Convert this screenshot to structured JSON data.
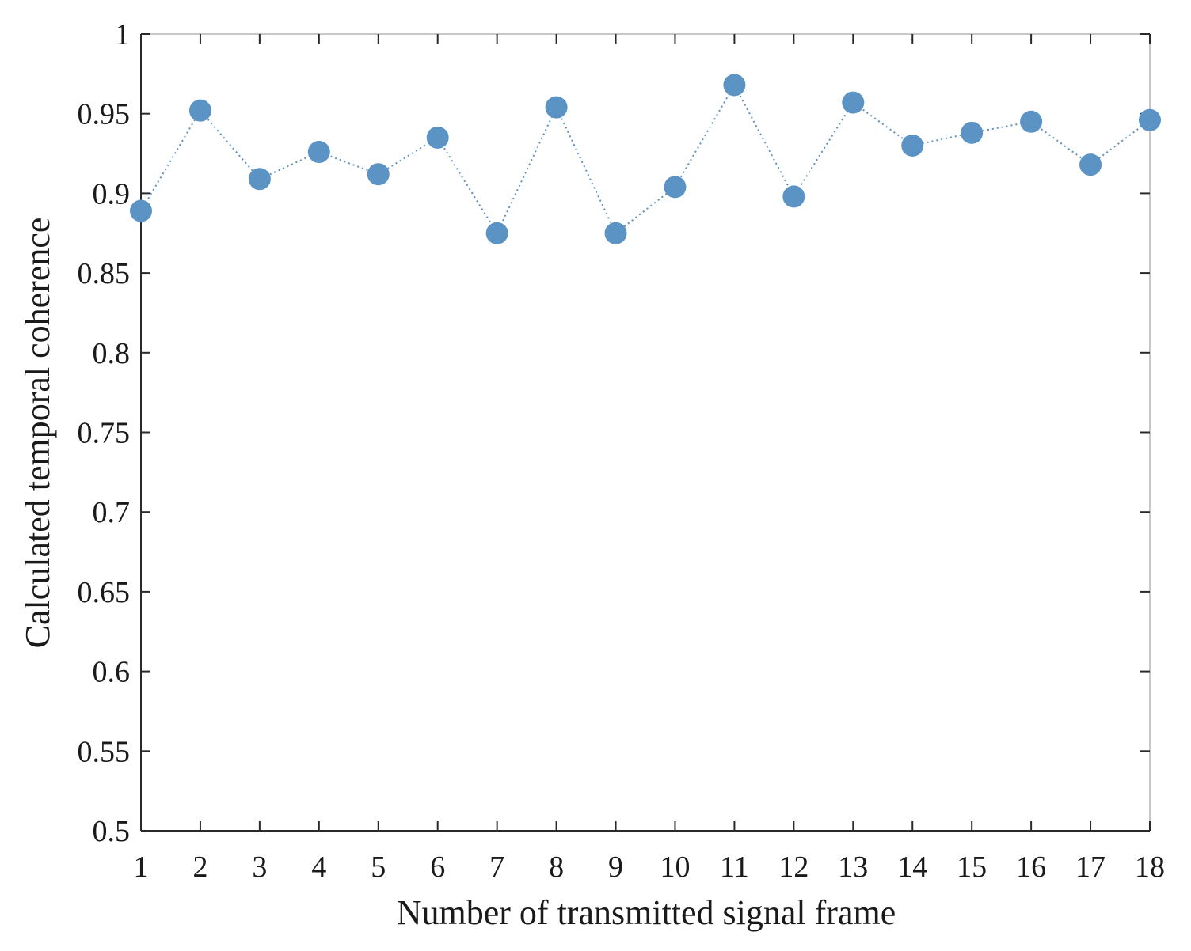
{
  "chart_data": {
    "type": "line",
    "xlabel": "Number of transmitted signal frame",
    "ylabel": "Calculated temporal coherence",
    "xlim": [
      1,
      18
    ],
    "ylim": [
      0.5,
      1
    ],
    "x_ticks": [
      1,
      2,
      3,
      4,
      5,
      6,
      7,
      8,
      9,
      10,
      11,
      12,
      13,
      14,
      15,
      16,
      17,
      18
    ],
    "y_ticks": [
      0.5,
      0.55,
      0.6,
      0.65,
      0.7,
      0.75,
      0.8,
      0.85,
      0.9,
      0.95,
      1
    ],
    "y_tick_labels": [
      "0.5",
      "0.55",
      "0.6",
      "0.65",
      "0.7",
      "0.75",
      "0.8",
      "0.85",
      "0.9",
      "0.95",
      "1"
    ],
    "grid": false,
    "series": [
      {
        "x": [
          1,
          2,
          3,
          4,
          5,
          6,
          7,
          8,
          9,
          10,
          11,
          12,
          13,
          14,
          15,
          16,
          17,
          18
        ],
        "values": [
          0.889,
          0.952,
          0.909,
          0.926,
          0.912,
          0.935,
          0.875,
          0.954,
          0.875,
          0.904,
          0.968,
          0.898,
          0.957,
          0.93,
          0.938,
          0.945,
          0.918,
          0.946
        ],
        "color": "#5b93c4",
        "marker": "circle",
        "line_style": "dotted"
      }
    ]
  }
}
